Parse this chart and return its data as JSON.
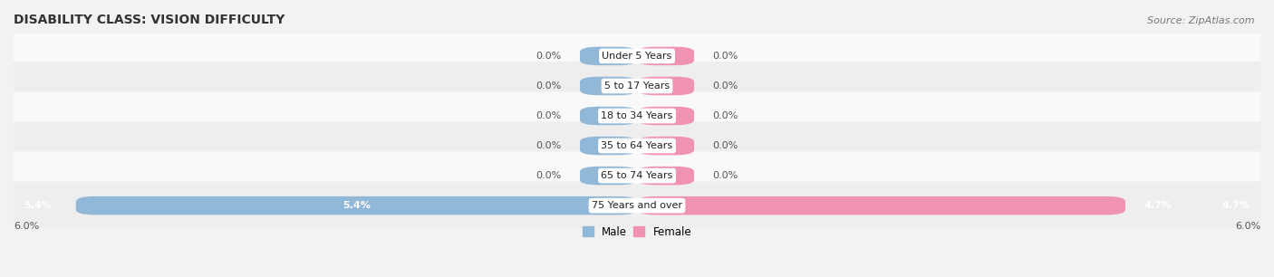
{
  "title": "DISABILITY CLASS: VISION DIFFICULTY",
  "source_text": "Source: ZipAtlas.com",
  "categories": [
    "Under 5 Years",
    "5 to 17 Years",
    "18 to 34 Years",
    "35 to 64 Years",
    "65 to 74 Years",
    "75 Years and over"
  ],
  "male_values": [
    0.0,
    0.0,
    0.0,
    0.0,
    0.0,
    5.4
  ],
  "female_values": [
    0.0,
    0.0,
    0.0,
    0.0,
    0.0,
    4.7
  ],
  "male_color": "#92b8d8",
  "female_color": "#f093b0",
  "axis_max": 6.0,
  "axis_label_left": "6.0%",
  "axis_label_right": "6.0%",
  "bar_height": 0.62,
  "stub_size": 0.55,
  "background_color": "#f2f2f2",
  "row_colors": [
    "#f9f9f9",
    "#eeeeee",
    "#f9f9f9",
    "#eeeeee",
    "#f9f9f9",
    "#eeeeee"
  ],
  "title_fontsize": 10,
  "source_fontsize": 8,
  "label_fontsize": 8,
  "category_fontsize": 8,
  "legend_fontsize": 8.5
}
